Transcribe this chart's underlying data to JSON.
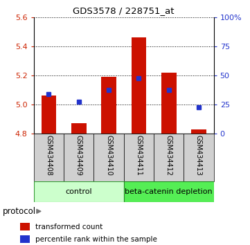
{
  "title": "GDS3578 / 228751_at",
  "categories": [
    "GSM434408",
    "GSM434409",
    "GSM434410",
    "GSM434411",
    "GSM434412",
    "GSM434413"
  ],
  "red_values": [
    5.06,
    4.87,
    5.19,
    5.46,
    5.22,
    4.83
  ],
  "blue_values_left": [
    5.07,
    5.02,
    5.1,
    5.18,
    5.1,
    4.98
  ],
  "bar_base": 4.8,
  "ylim": [
    4.8,
    5.6
  ],
  "yticks_left": [
    4.8,
    5.0,
    5.2,
    5.4,
    5.6
  ],
  "yticks_right": [
    0,
    25,
    50,
    75,
    100
  ],
  "yticks_right_labels": [
    "0",
    "25",
    "50",
    "75",
    "100%"
  ],
  "group_labels": [
    "control",
    "beta-catenin depletion"
  ],
  "legend_red": "transformed count",
  "legend_blue": "percentile rank within the sample",
  "protocol_label": "protocol",
  "bar_color_red": "#cc1100",
  "bar_color_blue": "#2233cc",
  "tick_color_left": "#cc2200",
  "tick_color_right": "#2233cc",
  "ctrl_color_light": "#ccffcc",
  "ctrl_color_dark": "#44cc44",
  "dep_color_light": "#55ee55",
  "dep_color_dark": "#228822",
  "label_bg_color": "#cccccc",
  "bar_width": 0.5
}
